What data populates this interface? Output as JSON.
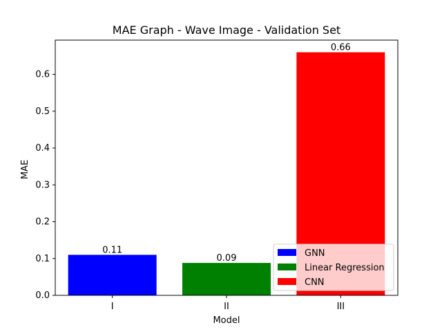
{
  "chart_data": {
    "type": "bar",
    "title": "MAE Graph - Wave Image - Validation Set",
    "xlabel": "Model",
    "ylabel": "MAE",
    "categories": [
      "I",
      "II",
      "III"
    ],
    "values": [
      0.11,
      0.088,
      0.66
    ],
    "data_labels": [
      "0.11",
      "0.09",
      "0.66"
    ],
    "colors": [
      "#0000ff",
      "#008000",
      "#ff0000"
    ],
    "legend": [
      "GNN",
      "Linear Regression",
      "CNN"
    ],
    "legend_placement": "lower-right",
    "ylim": [
      0,
      0.693
    ],
    "yticks": [
      0.0,
      0.1,
      0.2,
      0.3,
      0.4,
      0.5,
      0.6
    ],
    "ytick_labels": [
      "0.0",
      "0.1",
      "0.2",
      "0.3",
      "0.4",
      "0.5",
      "0.6"
    ],
    "grid": false
  }
}
